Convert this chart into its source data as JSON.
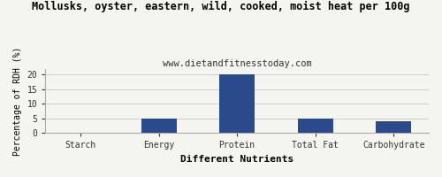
{
  "title": "Mollusks, oyster, eastern, wild, cooked, moist heat per 100g",
  "subtitle": "www.dietandfitnesstoday.com",
  "xlabel": "Different Nutrients",
  "ylabel": "Percentage of RDH (%)",
  "categories": [
    "Starch",
    "Energy",
    "Protein",
    "Total Fat",
    "Carbohydrate"
  ],
  "values": [
    0,
    5,
    20,
    5,
    4
  ],
  "bar_color": "#2b4a8b",
  "ylim": [
    0,
    22
  ],
  "yticks": [
    0,
    5,
    10,
    15,
    20
  ],
  "background_color": "#f5f5f0",
  "grid_color": "#cccccc",
  "title_fontsize": 8.5,
  "subtitle_fontsize": 7.5,
  "axis_label_fontsize": 7,
  "tick_fontsize": 7,
  "xlabel_fontsize": 8,
  "bar_width": 0.45
}
